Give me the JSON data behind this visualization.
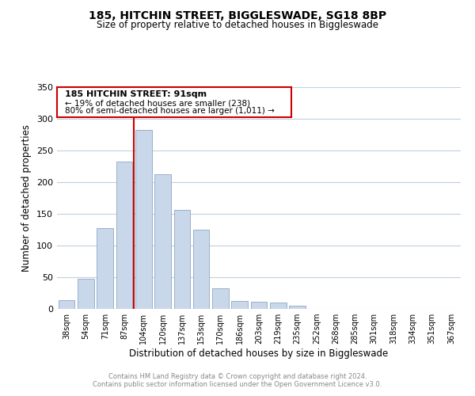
{
  "title": "185, HITCHIN STREET, BIGGLESWADE, SG18 8BP",
  "subtitle": "Size of property relative to detached houses in Biggleswade",
  "xlabel": "Distribution of detached houses by size in Biggleswade",
  "ylabel": "Number of detached properties",
  "bar_labels": [
    "38sqm",
    "54sqm",
    "71sqm",
    "87sqm",
    "104sqm",
    "120sqm",
    "137sqm",
    "153sqm",
    "170sqm",
    "186sqm",
    "203sqm",
    "219sqm",
    "235sqm",
    "252sqm",
    "268sqm",
    "285sqm",
    "301sqm",
    "318sqm",
    "334sqm",
    "351sqm",
    "367sqm"
  ],
  "bar_heights": [
    14,
    47,
    127,
    233,
    282,
    213,
    156,
    125,
    33,
    12,
    11,
    10,
    5,
    0,
    0,
    0,
    0,
    0,
    0,
    0,
    0
  ],
  "bar_color": "#c8d8ea",
  "bar_edge_color": "#9ab0c8",
  "vline_x": 3.5,
  "vline_color": "#cc0000",
  "ylim": [
    0,
    350
  ],
  "yticks": [
    0,
    50,
    100,
    150,
    200,
    250,
    300,
    350
  ],
  "annotation_title": "185 HITCHIN STREET: 91sqm",
  "annotation_line1": "← 19% of detached houses are smaller (238)",
  "annotation_line2": "80% of semi-detached houses are larger (1,011) →",
  "footer1": "Contains HM Land Registry data © Crown copyright and database right 2024.",
  "footer2": "Contains public sector information licensed under the Open Government Licence v3.0.",
  "bg_color": "#ffffff",
  "grid_color": "#c0d0e0",
  "footer_color": "#888888"
}
